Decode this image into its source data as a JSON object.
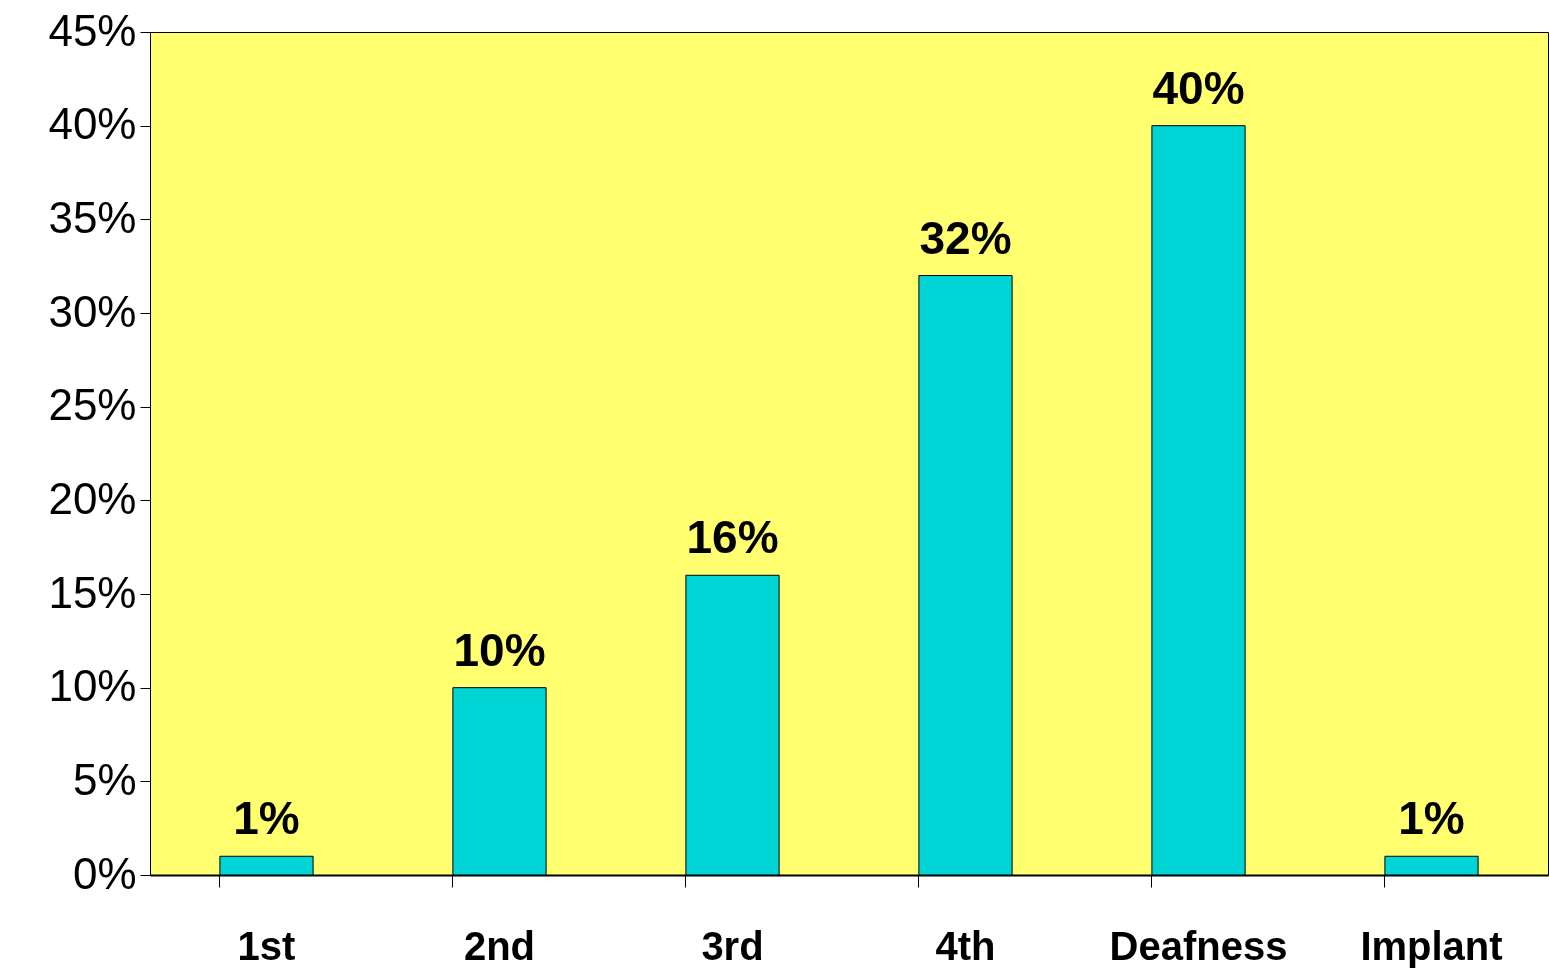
{
  "chart_data": {
    "type": "bar",
    "categories": [
      "1st",
      "2nd",
      "3rd",
      "4th",
      "Deafness",
      "Implant"
    ],
    "values": [
      1,
      10,
      16,
      32,
      40,
      1
    ],
    "value_labels": [
      "1%",
      "10%",
      "16%",
      "32%",
      "40%",
      "1%"
    ],
    "color": "#00d4d4",
    "ylim": [
      0,
      45
    ],
    "yticks": [
      {
        "value": 0,
        "label": "0%"
      },
      {
        "value": 5,
        "label": "5%"
      },
      {
        "value": 10,
        "label": "10%"
      },
      {
        "value": 15,
        "label": "15%"
      },
      {
        "value": 20,
        "label": "20%"
      },
      {
        "value": 25,
        "label": "25%"
      },
      {
        "value": 30,
        "label": "30%"
      },
      {
        "value": 35,
        "label": "35%"
      },
      {
        "value": 40,
        "label": "40%"
      },
      {
        "value": 45,
        "label": "45%"
      }
    ],
    "grid": false
  }
}
